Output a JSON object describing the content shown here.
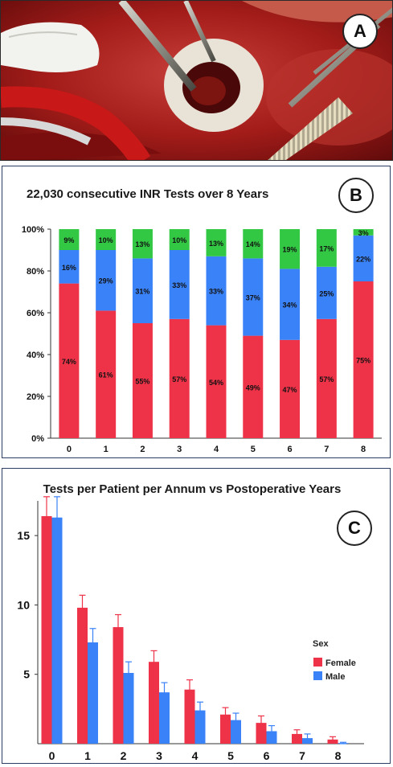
{
  "panels": {
    "a": {
      "label": "A"
    },
    "b": {
      "label": "B"
    },
    "c": {
      "label": "C"
    }
  },
  "colors": {
    "red": "#ee3349",
    "blue": "#3a82f7",
    "green": "#33c844"
  },
  "chart_data": [
    {
      "type": "bar",
      "stacked": true,
      "title": "22,030 consecutive INR Tests over 8 Years",
      "categories": [
        "0",
        "1",
        "2",
        "3",
        "4",
        "5",
        "6",
        "7",
        "8"
      ],
      "series": [
        {
          "values": [
            74,
            61,
            55,
            57,
            54,
            49,
            47,
            57,
            75
          ],
          "labels": [
            "74%",
            "61%",
            "55%",
            "57%",
            "54%",
            "49%",
            "47%",
            "57%",
            "75%"
          ],
          "color": "#ee3349"
        },
        {
          "values": [
            16,
            29,
            31,
            33,
            33,
            37,
            34,
            25,
            22
          ],
          "labels": [
            "16%",
            "29%",
            "31%",
            "33%",
            "33%",
            "37%",
            "34%",
            "25%",
            "22%"
          ],
          "color": "#3a82f7"
        },
        {
          "values": [
            9,
            10,
            13,
            10,
            13,
            14,
            19,
            17,
            3
          ],
          "labels": [
            "9%",
            "10%",
            "13%",
            "10%",
            "13%",
            "14%",
            "19%",
            "17%",
            "3%"
          ],
          "color": "#33c844"
        }
      ],
      "ylim": [
        0,
        100
      ],
      "yticks": [
        "0%",
        "20%",
        "40%",
        "60%",
        "80%",
        "100%"
      ],
      "legend": "none"
    },
    {
      "type": "bar",
      "title": "Tests per Patient per Annum vs Postoperative Years",
      "categories": [
        "0",
        "1",
        "2",
        "3",
        "4",
        "5",
        "6",
        "7",
        "8"
      ],
      "series": [
        {
          "name": "Female",
          "values": [
            16.4,
            9.8,
            8.4,
            5.9,
            3.9,
            2.1,
            1.5,
            0.7,
            0.3
          ],
          "error": [
            1.4,
            0.9,
            0.9,
            0.8,
            0.7,
            0.5,
            0.5,
            0.3,
            0.2
          ],
          "color": "#ee3349"
        },
        {
          "name": "Male",
          "values": [
            16.3,
            7.3,
            5.1,
            3.7,
            2.4,
            1.7,
            0.9,
            0.4,
            0.05
          ],
          "error": [
            1.5,
            1.0,
            0.8,
            0.7,
            0.6,
            0.5,
            0.4,
            0.3,
            0.05
          ],
          "color": "#3a82f7"
        }
      ],
      "ylim": [
        0,
        17.5
      ],
      "yticks": [
        "5",
        "10",
        "15"
      ],
      "legend_title": "Sex",
      "legend": "right"
    }
  ]
}
